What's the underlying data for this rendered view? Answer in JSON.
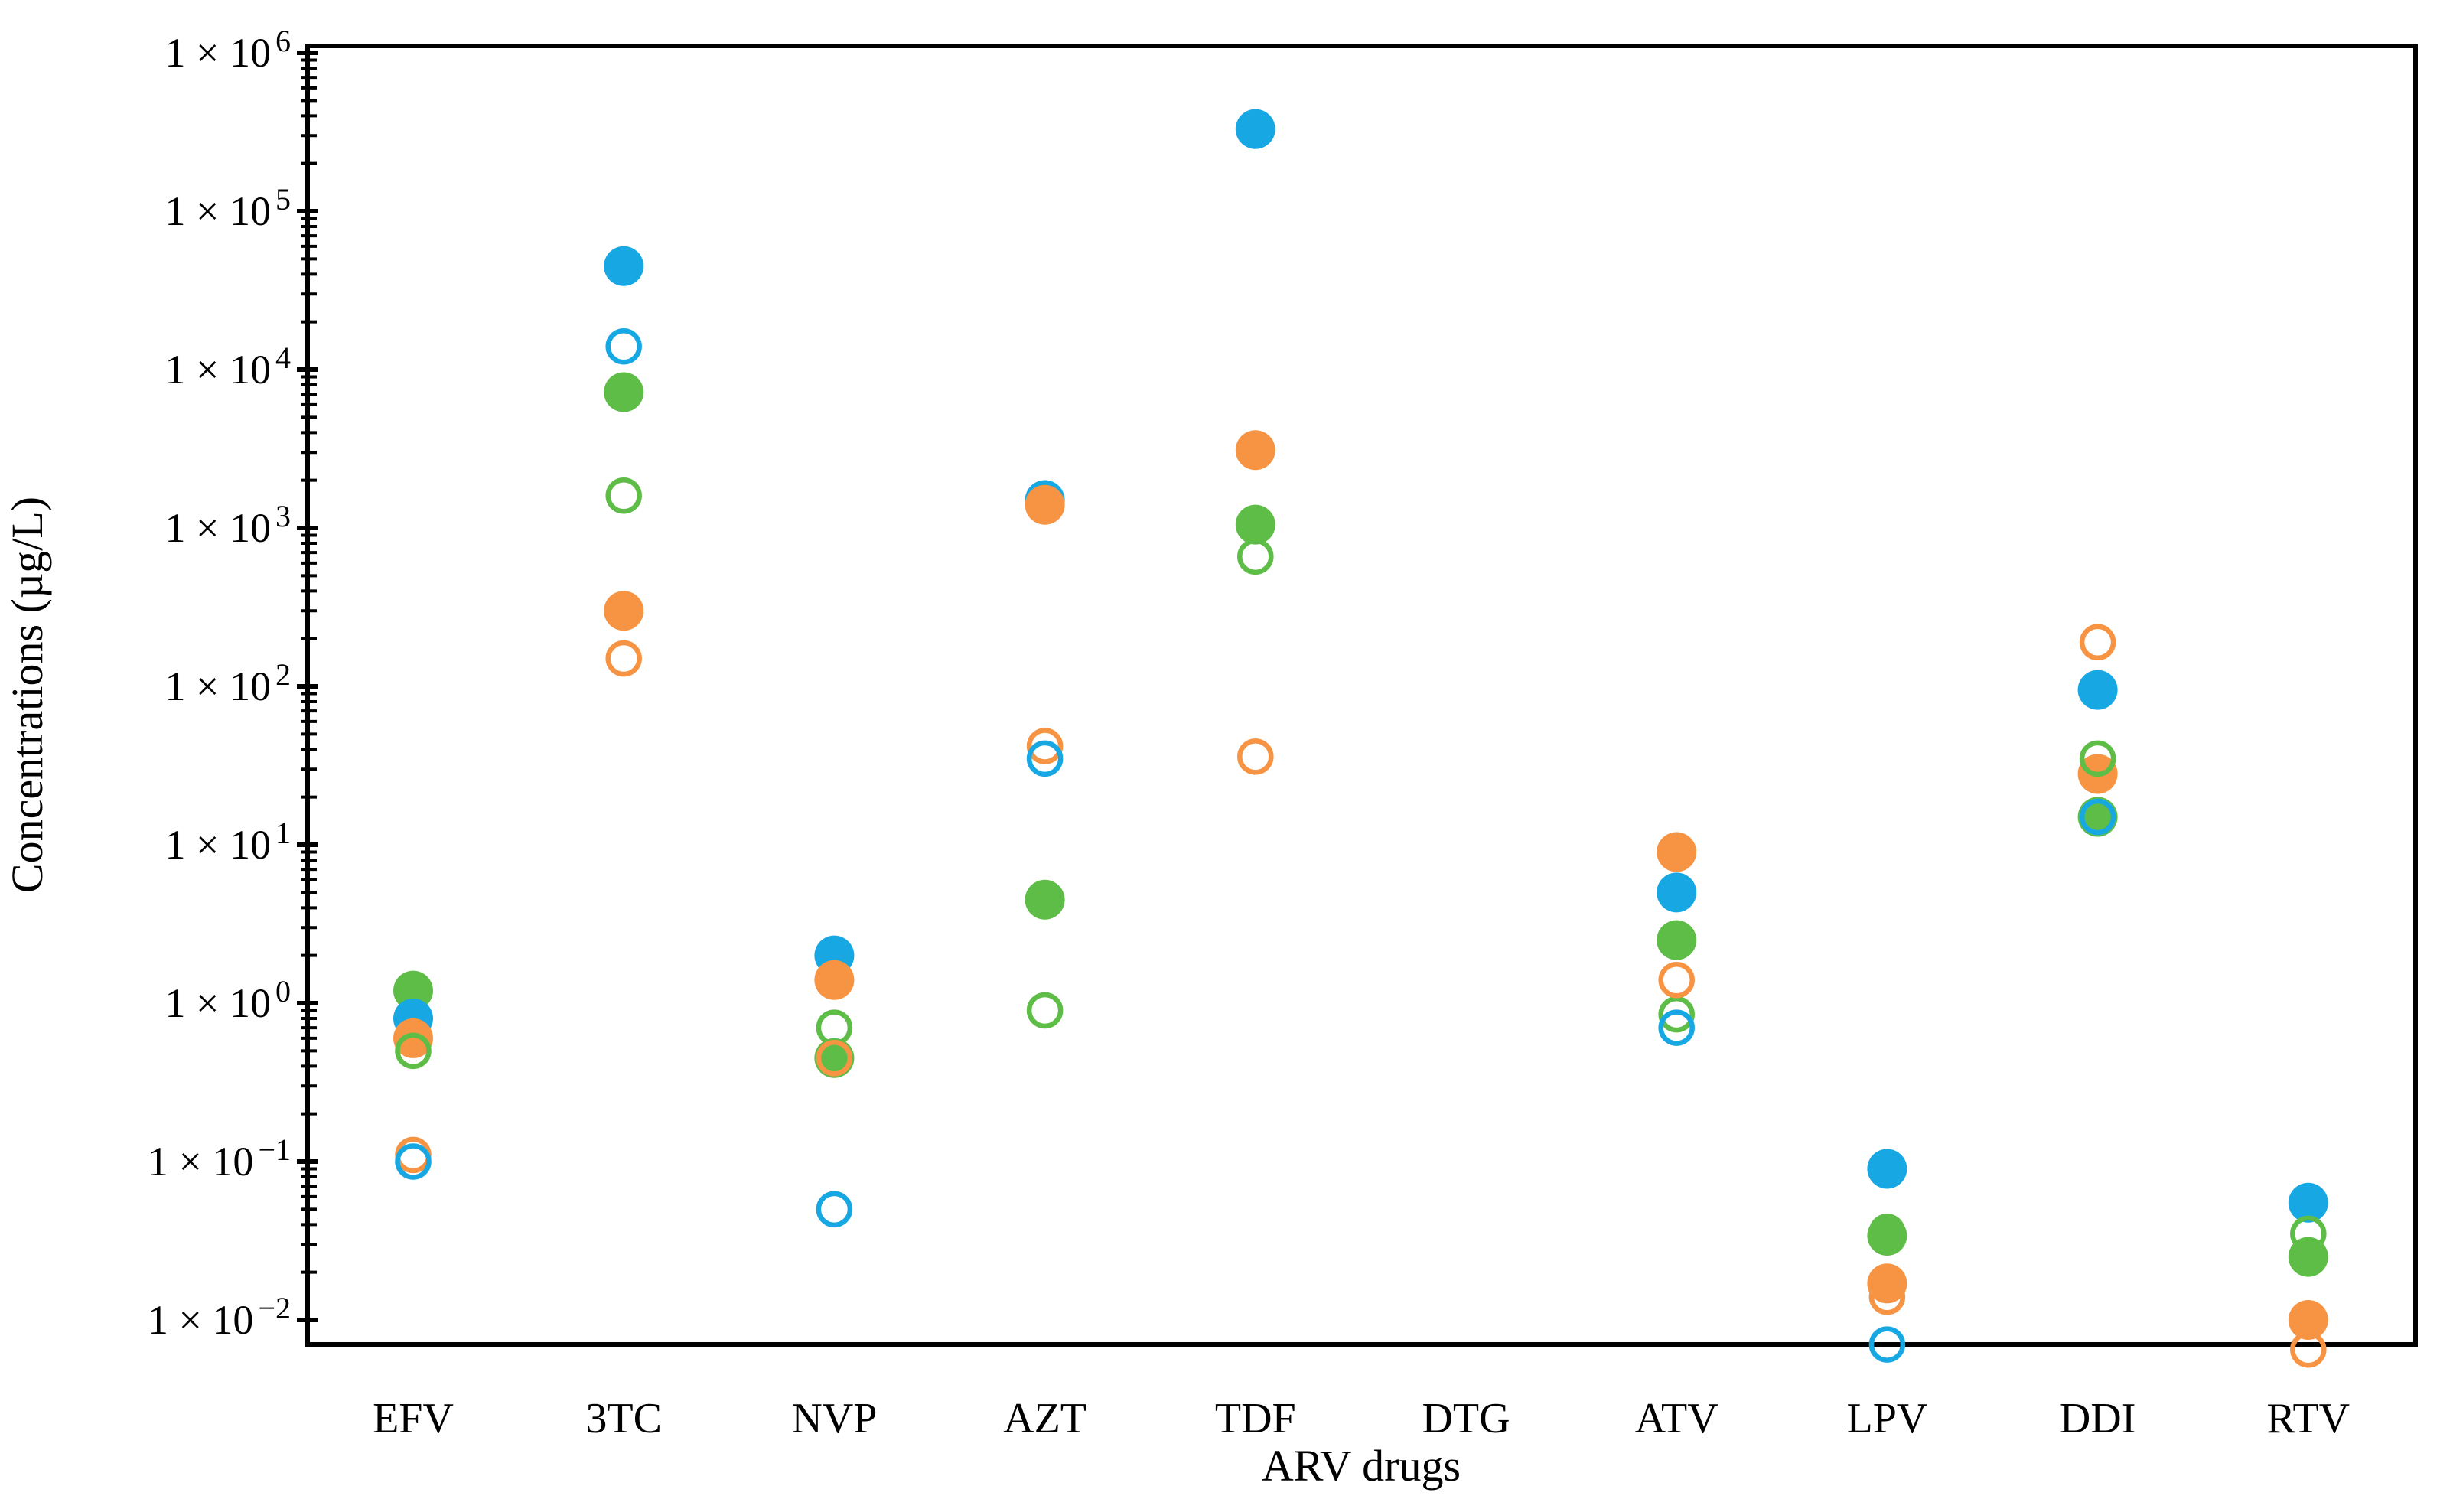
{
  "figure": {
    "y_axis_title": "Concentrations (µg/L)",
    "x_axis_title": "ARV drugs",
    "y_tick_mantissa": "1 × 10",
    "background": "#ffffff",
    "axis_color": "#000000"
  },
  "chart_data": {
    "type": "scatter",
    "y_scale": "log10",
    "ylim": [
      0.01,
      1000000
    ],
    "y_tick_exponents": [
      6,
      5,
      4,
      3,
      2,
      1,
      0,
      -1,
      -2
    ],
    "grid": "off",
    "legend": "none",
    "xlabel": "ARV drugs",
    "ylabel": "Concentrations (µg/L)",
    "categories": [
      "EFV",
      "3TC",
      "NVP",
      "AZT",
      "TDF",
      "DTG",
      "ATV",
      "LPV",
      "DDI",
      "RTV"
    ],
    "series": [
      {
        "name": "green-filled",
        "marker": "filled",
        "color": "#5EBD46",
        "values": [
          1.2,
          7200,
          0.45,
          4.5,
          1050,
          null,
          2.5,
          0.034,
          15,
          0.025
        ]
      },
      {
        "name": "blue-filled",
        "marker": "filled",
        "color": "#17A8E4",
        "values": [
          0.8,
          45000,
          2.0,
          1500,
          330000,
          null,
          5,
          0.09,
          95,
          0.055
        ]
      },
      {
        "name": "orange-filled",
        "marker": "filled",
        "color": "#F79443",
        "values": [
          0.6,
          300,
          1.4,
          1400,
          3100,
          null,
          9,
          0.017,
          28,
          0.01
        ]
      },
      {
        "name": "green-open",
        "marker": "open",
        "color": "#5EBD46",
        "values": [
          0.5,
          1600,
          0.7,
          0.9,
          660,
          null,
          0.85,
          0.036,
          35,
          0.035
        ]
      },
      {
        "name": "orange-open",
        "marker": "open",
        "color": "#F79443",
        "values": [
          0.11,
          150,
          0.45,
          42,
          36,
          null,
          1.4,
          0.014,
          190,
          0.0065
        ]
      },
      {
        "name": "blue-open",
        "marker": "open",
        "color": "#17A8E4",
        "values": [
          0.1,
          14000,
          0.05,
          35,
          null,
          null,
          0.7,
          0.007,
          15,
          null
        ]
      }
    ]
  }
}
